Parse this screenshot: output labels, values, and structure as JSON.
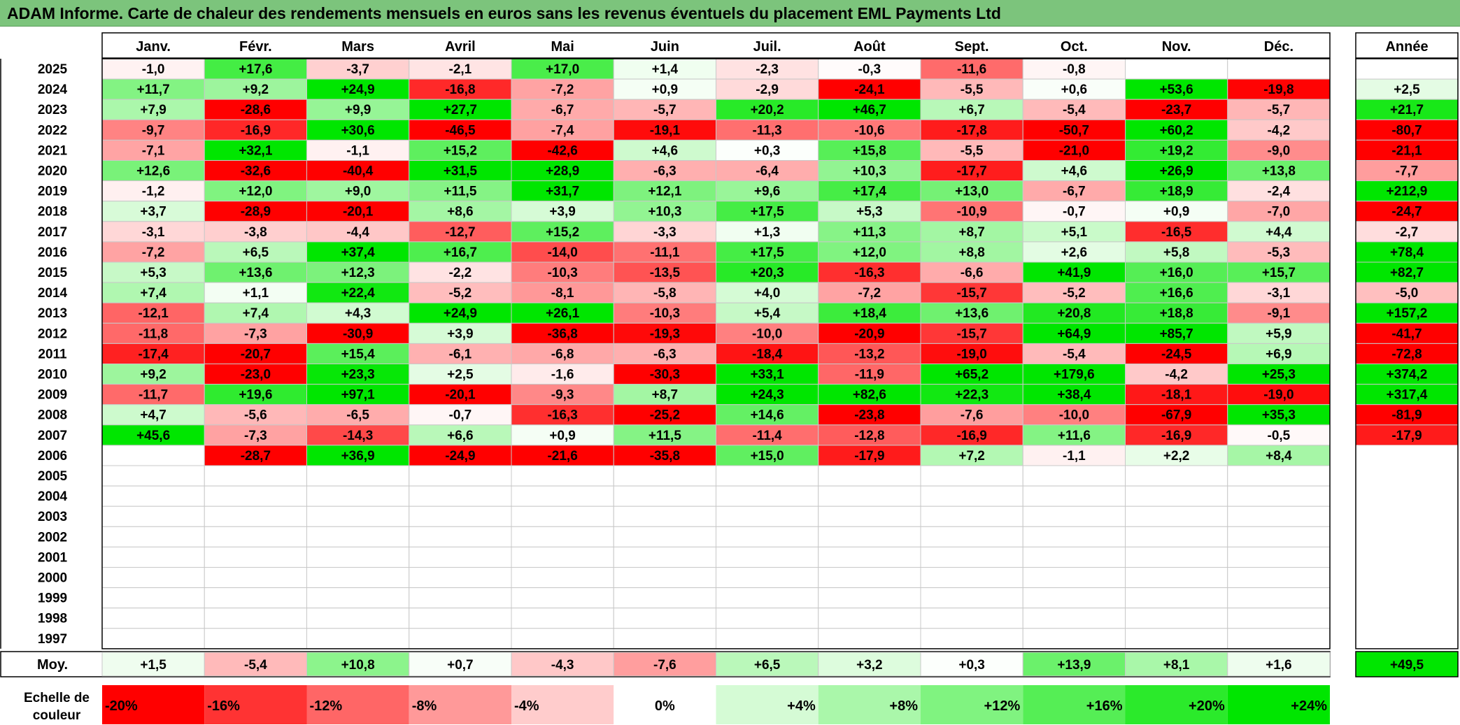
{
  "title": "ADAM Informe. Carte de chaleur des rendements mensuels en euros sans les revenus éventuels du placement EML Payments Ltd",
  "colors": {
    "title_bg": "#7cc47c",
    "positive_max": "#00e600",
    "negative_max": "#ff0000",
    "neutral": "#ffffff"
  },
  "chart_data": {
    "type": "heatmap",
    "value_unit": "%",
    "months": [
      "Janv.",
      "Févr.",
      "Mars",
      "Avril",
      "Mai",
      "Juin",
      "Juil.",
      "Août",
      "Sept.",
      "Oct.",
      "Nov.",
      "Déc."
    ],
    "year_column_label": "Année",
    "rows": [
      {
        "year": "2025",
        "values": [
          "-1,0",
          "+17,6",
          "-3,7",
          "-2,1",
          "+17,0",
          "+1,4",
          "-2,3",
          "-0,3",
          "-11,6",
          "-0,8",
          "",
          ""
        ],
        "annual": ""
      },
      {
        "year": "2024",
        "values": [
          "+11,7",
          "+9,2",
          "+24,9",
          "-16,8",
          "-7,2",
          "+0,9",
          "-2,9",
          "-24,1",
          "-5,5",
          "+0,6",
          "+53,6",
          "-19,8"
        ],
        "annual": "+2,5"
      },
      {
        "year": "2023",
        "values": [
          "+7,9",
          "-28,6",
          "+9,9",
          "+27,7",
          "-6,7",
          "-5,7",
          "+20,2",
          "+46,7",
          "+6,7",
          "-5,4",
          "-23,7",
          "-5,7"
        ],
        "annual": "+21,7"
      },
      {
        "year": "2022",
        "values": [
          "-9,7",
          "-16,9",
          "+30,6",
          "-46,5",
          "-7,4",
          "-19,1",
          "-11,3",
          "-10,6",
          "-17,8",
          "-50,7",
          "+60,2",
          "-4,2"
        ],
        "annual": "-80,7"
      },
      {
        "year": "2021",
        "values": [
          "-7,1",
          "+32,1",
          "-1,1",
          "+15,2",
          "-42,6",
          "+4,6",
          "+0,3",
          "+15,8",
          "-5,5",
          "-21,0",
          "+19,2",
          "-9,0"
        ],
        "annual": "-21,1"
      },
      {
        "year": "2020",
        "values": [
          "+12,6",
          "-32,6",
          "-40,4",
          "+31,5",
          "+28,9",
          "-6,3",
          "-6,4",
          "+10,3",
          "-17,7",
          "+4,6",
          "+26,9",
          "+13,8"
        ],
        "annual": "-7,7"
      },
      {
        "year": "2019",
        "values": [
          "-1,2",
          "+12,0",
          "+9,0",
          "+11,5",
          "+31,7",
          "+12,1",
          "+9,6",
          "+17,4",
          "+13,0",
          "-6,7",
          "+18,9",
          "-2,4"
        ],
        "annual": "+212,9"
      },
      {
        "year": "2018",
        "values": [
          "+3,7",
          "-28,9",
          "-20,1",
          "+8,6",
          "+3,9",
          "+10,3",
          "+17,5",
          "+5,3",
          "-10,9",
          "-0,7",
          "+0,9",
          "-7,0"
        ],
        "annual": "-24,7"
      },
      {
        "year": "2017",
        "values": [
          "-3,1",
          "-3,8",
          "-4,4",
          "-12,7",
          "+15,2",
          "-3,3",
          "+1,3",
          "+11,3",
          "+8,7",
          "+5,1",
          "-16,5",
          "+4,4"
        ],
        "annual": "-2,7"
      },
      {
        "year": "2016",
        "values": [
          "-7,2",
          "+6,5",
          "+37,4",
          "+16,7",
          "-14,0",
          "-11,1",
          "+17,5",
          "+12,0",
          "+8,8",
          "+2,6",
          "+5,8",
          "-5,3"
        ],
        "annual": "+78,4"
      },
      {
        "year": "2015",
        "values": [
          "+5,3",
          "+13,6",
          "+12,3",
          "-2,2",
          "-10,3",
          "-13,5",
          "+20,3",
          "-16,3",
          "-6,6",
          "+41,9",
          "+16,0",
          "+15,7"
        ],
        "annual": "+82,7"
      },
      {
        "year": "2014",
        "values": [
          "+7,4",
          "+1,1",
          "+22,4",
          "-5,2",
          "-8,1",
          "-5,8",
          "+4,0",
          "-7,2",
          "-15,7",
          "-5,2",
          "+16,6",
          "-3,1"
        ],
        "annual": "-5,0"
      },
      {
        "year": "2013",
        "values": [
          "-12,1",
          "+7,4",
          "+4,3",
          "+24,9",
          "+26,1",
          "-10,3",
          "+5,4",
          "+18,4",
          "+13,6",
          "+20,8",
          "+18,8",
          "-9,1"
        ],
        "annual": "+157,2"
      },
      {
        "year": "2012",
        "values": [
          "-11,8",
          "-7,3",
          "-30,9",
          "+3,9",
          "-36,8",
          "-19,3",
          "-10,0",
          "-20,9",
          "-15,7",
          "+64,9",
          "+85,7",
          "+5,9"
        ],
        "annual": "-41,7"
      },
      {
        "year": "2011",
        "values": [
          "-17,4",
          "-20,7",
          "+15,4",
          "-6,1",
          "-6,8",
          "-6,3",
          "-18,4",
          "-13,2",
          "-19,0",
          "-5,4",
          "-24,5",
          "+6,9"
        ],
        "annual": "-72,8"
      },
      {
        "year": "2010",
        "values": [
          "+9,2",
          "-23,0",
          "+23,3",
          "+2,5",
          "-1,6",
          "-30,3",
          "+33,1",
          "-11,9",
          "+65,2",
          "+179,6",
          "-4,2",
          "+25,3"
        ],
        "annual": "+374,2"
      },
      {
        "year": "2009",
        "values": [
          "-11,7",
          "+19,6",
          "+97,1",
          "-20,1",
          "-9,3",
          "+8,7",
          "+24,3",
          "+82,6",
          "+22,3",
          "+38,4",
          "-18,1",
          "-19,0"
        ],
        "annual": "+317,4"
      },
      {
        "year": "2008",
        "values": [
          "+4,7",
          "-5,6",
          "-6,5",
          "-0,7",
          "-16,3",
          "-25,2",
          "+14,6",
          "-23,8",
          "-7,6",
          "-10,0",
          "-67,9",
          "+35,3"
        ],
        "annual": "-81,9"
      },
      {
        "year": "2007",
        "values": [
          "+45,6",
          "-7,3",
          "-14,3",
          "+6,6",
          "+0,9",
          "+11,5",
          "-11,4",
          "-12,8",
          "-16,9",
          "+11,6",
          "-16,9",
          "-0,5"
        ],
        "annual": "-17,9"
      },
      {
        "year": "2006",
        "values": [
          "",
          "-28,7",
          "+36,9",
          "-24,9",
          "-21,6",
          "-35,8",
          "+15,0",
          "-17,9",
          "+7,2",
          "-1,1",
          "+2,2",
          "+8,4"
        ],
        "annual": ""
      },
      {
        "year": "2005",
        "values": [
          "",
          "",
          "",
          "",
          "",
          "",
          "",
          "",
          "",
          "",
          "",
          ""
        ],
        "annual": ""
      },
      {
        "year": "2004",
        "values": [
          "",
          "",
          "",
          "",
          "",
          "",
          "",
          "",
          "",
          "",
          "",
          ""
        ],
        "annual": ""
      },
      {
        "year": "2003",
        "values": [
          "",
          "",
          "",
          "",
          "",
          "",
          "",
          "",
          "",
          "",
          "",
          ""
        ],
        "annual": ""
      },
      {
        "year": "2002",
        "values": [
          "",
          "",
          "",
          "",
          "",
          "",
          "",
          "",
          "",
          "",
          "",
          ""
        ],
        "annual": ""
      },
      {
        "year": "2001",
        "values": [
          "",
          "",
          "",
          "",
          "",
          "",
          "",
          "",
          "",
          "",
          "",
          ""
        ],
        "annual": ""
      },
      {
        "year": "2000",
        "values": [
          "",
          "",
          "",
          "",
          "",
          "",
          "",
          "",
          "",
          "",
          "",
          ""
        ],
        "annual": ""
      },
      {
        "year": "1999",
        "values": [
          "",
          "",
          "",
          "",
          "",
          "",
          "",
          "",
          "",
          "",
          "",
          ""
        ],
        "annual": ""
      },
      {
        "year": "1998",
        "values": [
          "",
          "",
          "",
          "",
          "",
          "",
          "",
          "",
          "",
          "",
          "",
          ""
        ],
        "annual": ""
      },
      {
        "year": "1997",
        "values": [
          "",
          "",
          "",
          "",
          "",
          "",
          "",
          "",
          "",
          "",
          "",
          ""
        ],
        "annual": ""
      }
    ],
    "average_row": {
      "label": "Moy.",
      "values": [
        "+1,5",
        "-5,4",
        "+10,8",
        "+0,7",
        "-4,3",
        "-7,6",
        "+6,5",
        "+3,2",
        "+0,3",
        "+13,9",
        "+8,1",
        "+1,6"
      ],
      "annual": "+49,5"
    },
    "color_scale": {
      "label_line1": "Echelle de",
      "label_line2": "couleur",
      "stops": [
        {
          "label": "-20%",
          "value": -20
        },
        {
          "label": "-16%",
          "value": -16
        },
        {
          "label": "-12%",
          "value": -12
        },
        {
          "label": "-8%",
          "value": -8
        },
        {
          "label": "-4%",
          "value": -4
        },
        {
          "label": "0%",
          "value": 0
        },
        {
          "label": "+4%",
          "value": 4
        },
        {
          "label": "+8%",
          "value": 8
        },
        {
          "label": "+12%",
          "value": 12
        },
        {
          "label": "+16%",
          "value": 16
        },
        {
          "label": "+20%",
          "value": 20
        },
        {
          "label": "+24%",
          "value": 24
        }
      ]
    }
  }
}
